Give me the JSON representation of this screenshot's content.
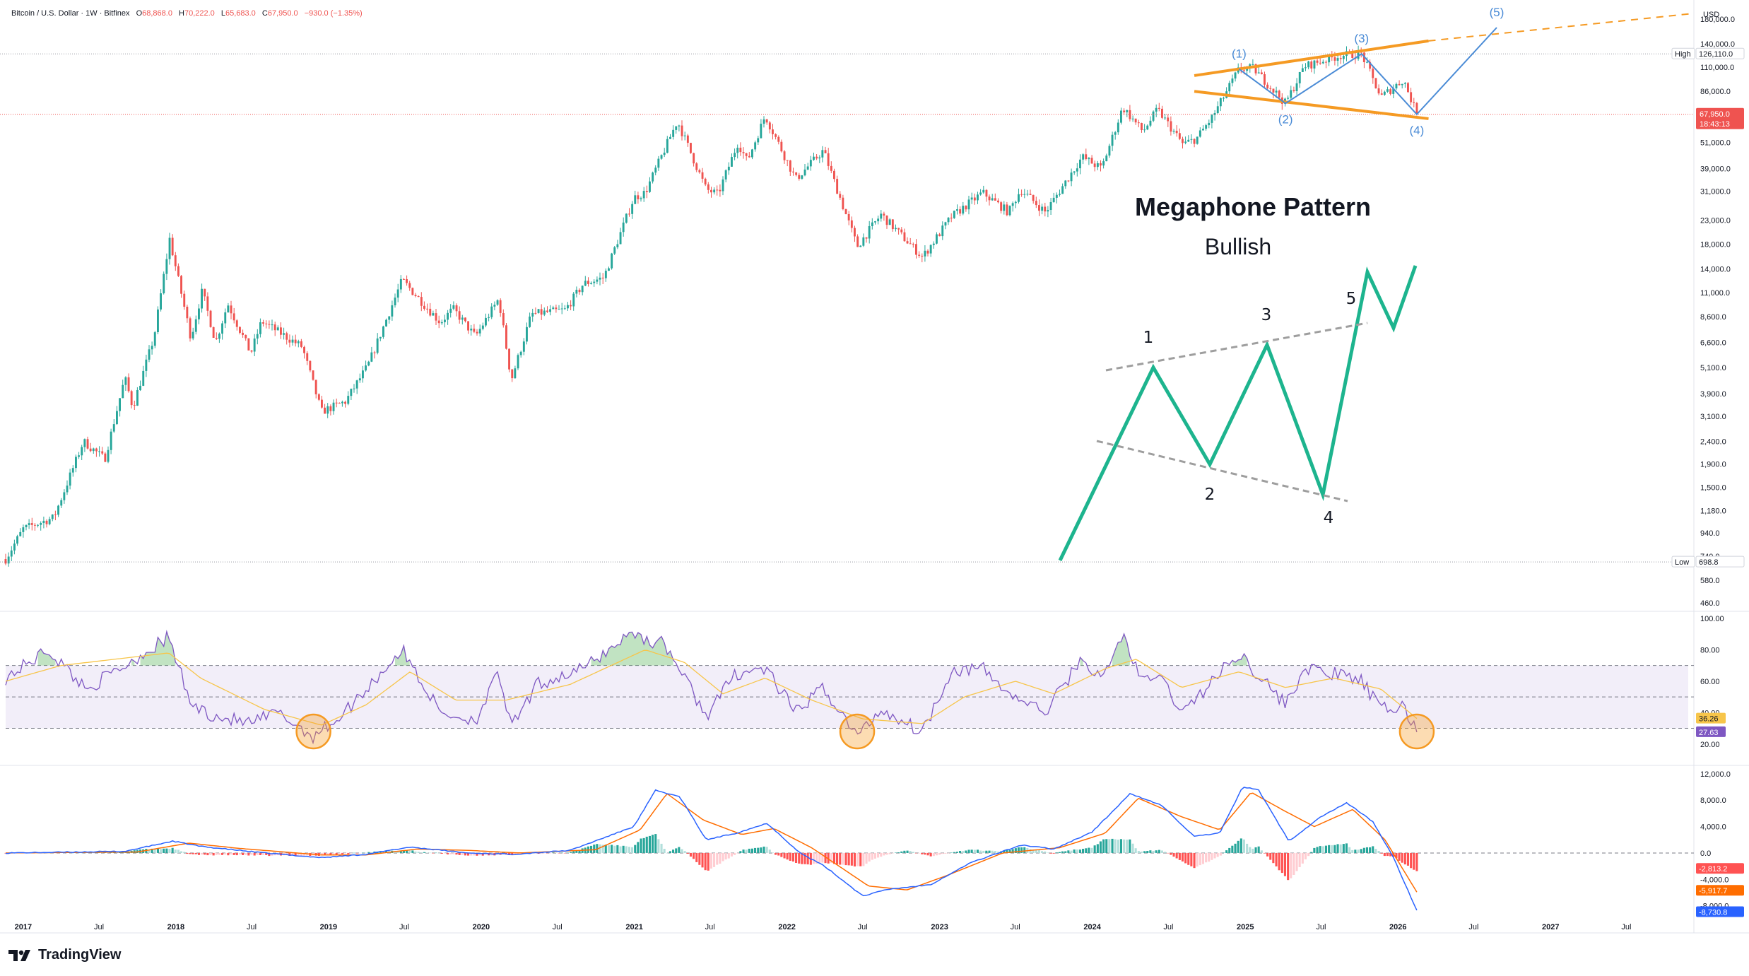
{
  "header": {
    "symbol": "Bitcoin / U.S. Dollar · 1W · Bitfinex",
    "open_label": "O",
    "open": "68,868.0",
    "high_label": "H",
    "high": "70,222.0",
    "low_label": "L",
    "low": "65,683.0",
    "close_label": "C",
    "close": "67,950.0",
    "change": "−930.0 (−1.35%)"
  },
  "branding": {
    "logo_text": "TradingView"
  },
  "colors": {
    "up": "#26a69a",
    "down": "#ef5350",
    "wave": "#4a8bd6",
    "megaphone": "#f59a23",
    "schematic": "#1db48e",
    "rsi": "#7e57c2",
    "rsi_ma": "#f7c54a",
    "macd": "#2962ff",
    "signal": "#ff6d00"
  },
  "chart_data": [
    {
      "type": "candlestick",
      "name": "price",
      "scale": "log",
      "currency": "USD",
      "ylim": [
        430,
        200000
      ],
      "xlim": [
        "2016-11-20",
        "2027-12-01"
      ],
      "price_ticks": [
        "180,000.0",
        "140,000.0",
        "110,000.0",
        "86,000.0",
        "51,000.0",
        "39,000.0",
        "31,000.0",
        "23,000.0",
        "18,000.0",
        "14,000.0",
        "11,000.0",
        "8,600.0",
        "6,600.0",
        "5,100.0",
        "3,900.0",
        "3,100.0",
        "2,400.0",
        "1,900.0",
        "1,500.0",
        "1,180.0",
        "940.0",
        "740.0",
        "580.0",
        "460.0"
      ],
      "high_marker": {
        "label": "High",
        "value": "126,110.0"
      },
      "low_marker": {
        "label": "Low",
        "value": "698.8"
      },
      "last_price": {
        "value": "67,950.0",
        "countdown": "18:43:13"
      },
      "price_path": [
        [
          "2016-11-20",
          720
        ],
        [
          "2017-01-01",
          980
        ],
        [
          "2017-03-15",
          1100
        ],
        [
          "2017-05-25",
          2400
        ],
        [
          "2017-07-15",
          2000
        ],
        [
          "2017-09-01",
          4600
        ],
        [
          "2017-09-20",
          3400
        ],
        [
          "2017-11-10",
          7000
        ],
        [
          "2017-12-17",
          19000
        ],
        [
          "2018-02-06",
          6900
        ],
        [
          "2018-03-05",
          11200
        ],
        [
          "2018-04-06",
          6600
        ],
        [
          "2018-05-05",
          9800
        ],
        [
          "2018-06-29",
          5900
        ],
        [
          "2018-07-25",
          8200
        ],
        [
          "2018-10-30",
          6300
        ],
        [
          "2018-12-15",
          3250
        ],
        [
          "2019-02-10",
          3600
        ],
        [
          "2019-04-05",
          5200
        ],
        [
          "2019-06-26",
          12500
        ],
        [
          "2019-09-25",
          8100
        ],
        [
          "2019-10-26",
          9300
        ],
        [
          "2019-12-18",
          7000
        ],
        [
          "2020-02-12",
          10300
        ],
        [
          "2020-03-13",
          4500
        ],
        [
          "2020-04-30",
          8800
        ],
        [
          "2020-07-20",
          9200
        ],
        [
          "2020-09-01",
          12000
        ],
        [
          "2020-10-20",
          12800
        ],
        [
          "2020-12-31",
          29000
        ],
        [
          "2021-01-27",
          30500
        ],
        [
          "2021-04-14",
          63500
        ],
        [
          "2021-06-22",
          31500
        ],
        [
          "2021-07-20",
          30000
        ],
        [
          "2021-09-06",
          51000
        ],
        [
          "2021-09-28",
          42000
        ],
        [
          "2021-11-10",
          67000
        ],
        [
          "2022-01-22",
          35000
        ],
        [
          "2022-03-29",
          47000
        ],
        [
          "2022-06-18",
          17600
        ],
        [
          "2022-08-14",
          24400
        ],
        [
          "2022-11-21",
          15800
        ],
        [
          "2023-01-29",
          23800
        ],
        [
          "2023-04-14",
          30500
        ],
        [
          "2023-06-15",
          25000
        ],
        [
          "2023-07-14",
          31500
        ],
        [
          "2023-09-11",
          25000
        ],
        [
          "2023-12-08",
          44000
        ],
        [
          "2024-01-23",
          39000
        ],
        [
          "2024-03-14",
          73000
        ],
        [
          "2024-05-01",
          57000
        ],
        [
          "2024-06-05",
          71500
        ],
        [
          "2024-08-05",
          50000
        ],
        [
          "2024-09-06",
          53000
        ],
        [
          "2024-10-14",
          66000
        ],
        [
          "2024-12-17",
          108000
        ],
        [
          "2025-01-20",
          109000
        ],
        [
          "2025-04-07",
          76000
        ],
        [
          "2025-05-22",
          111000
        ],
        [
          "2025-08-14",
          124000
        ],
        [
          "2025-10-06",
          126110
        ],
        [
          "2025-11-21",
          81000
        ],
        [
          "2026-01-14",
          97000
        ],
        [
          "2026-02-15",
          67950
        ]
      ],
      "elliott_waves": [
        {
          "label": "(1)",
          "date": "2024-12-17",
          "price": 108000,
          "side": "above"
        },
        {
          "label": "(2)",
          "date": "2025-04-07",
          "price": 76000,
          "side": "below"
        },
        {
          "label": "(3)",
          "date": "2025-10-06",
          "price": 126110,
          "side": "above"
        },
        {
          "label": "(4)",
          "date": "2026-02-15",
          "price": 67950,
          "side": "below"
        },
        {
          "label": "(5)",
          "date": "2026-08-25",
          "price": 165000,
          "side": "above"
        }
      ],
      "megaphone_upper": [
        [
          "2024-09-01",
          101000
        ],
        [
          "2026-03-15",
          144000
        ]
      ],
      "megaphone_upper_ext": [
        [
          "2026-03-15",
          144000
        ],
        [
          "2027-12-01",
          190000
        ]
      ],
      "megaphone_lower": [
        [
          "2024-09-01",
          86000
        ],
        [
          "2026-03-15",
          65000
        ]
      ],
      "x_ticks": [
        [
          "2017-01-01",
          "2017"
        ],
        [
          "2017-07-01",
          "Jul"
        ],
        [
          "2018-01-01",
          "2018"
        ],
        [
          "2018-07-01",
          "Jul"
        ],
        [
          "2019-01-01",
          "2019"
        ],
        [
          "2019-07-01",
          "Jul"
        ],
        [
          "2020-01-01",
          "2020"
        ],
        [
          "2020-07-01",
          "Jul"
        ],
        [
          "2021-01-01",
          "2021"
        ],
        [
          "2021-07-01",
          "Jul"
        ],
        [
          "2022-01-01",
          "2022"
        ],
        [
          "2022-07-01",
          "Jul"
        ],
        [
          "2023-01-01",
          "2023"
        ],
        [
          "2023-07-01",
          "Jul"
        ],
        [
          "2024-01-01",
          "2024"
        ],
        [
          "2024-07-01",
          "Jul"
        ],
        [
          "2025-01-01",
          "2025"
        ],
        [
          "2025-07-01",
          "Jul"
        ],
        [
          "2026-01-01",
          "2026"
        ],
        [
          "2026-07-01",
          "Jul"
        ],
        [
          "2027-01-01",
          "2027"
        ],
        [
          "2027-07-01",
          "Jul"
        ]
      ]
    },
    {
      "type": "diagram",
      "name": "megaphone schematic",
      "title": "Megaphone Pattern",
      "subtitle": "Bullish",
      "wave_labels": [
        "1",
        "2",
        "3",
        "4",
        "5"
      ]
    },
    {
      "type": "line",
      "name": "RSI",
      "ylim": [
        10,
        100
      ],
      "ticks": [
        "100.00",
        "80.00",
        "60.00",
        "40.00",
        "20.00"
      ],
      "band": [
        30,
        70
      ],
      "midline": 50,
      "rsi_value": "27.63",
      "rsi_ma_value": "36.26",
      "rsi_path": [
        [
          "2016-11-20",
          62
        ],
        [
          "2017-03-01",
          80
        ],
        [
          "2017-06-01",
          55
        ],
        [
          "2017-09-01",
          70
        ],
        [
          "2017-12-15",
          88
        ],
        [
          "2018-02-06",
          45
        ],
        [
          "2018-04-01",
          38
        ],
        [
          "2018-06-28",
          33
        ],
        [
          "2018-09-01",
          40
        ],
        [
          "2018-11-26",
          25
        ],
        [
          "2019-02-01",
          38
        ],
        [
          "2019-06-26",
          80
        ],
        [
          "2019-09-25",
          40
        ],
        [
          "2019-12-18",
          35
        ],
        [
          "2020-02-12",
          65
        ],
        [
          "2020-03-13",
          30
        ],
        [
          "2020-05-15",
          58
        ],
        [
          "2020-09-01",
          68
        ],
        [
          "2020-12-31",
          92
        ],
        [
          "2021-01-27",
          86
        ],
        [
          "2021-03-15",
          84
        ],
        [
          "2021-06-22",
          38
        ],
        [
          "2021-09-01",
          65
        ],
        [
          "2021-11-10",
          68
        ],
        [
          "2022-01-22",
          40
        ],
        [
          "2022-03-29",
          56
        ],
        [
          "2022-06-18",
          25
        ],
        [
          "2022-08-14",
          42
        ],
        [
          "2022-11-21",
          28
        ],
        [
          "2023-01-29",
          67
        ],
        [
          "2023-04-14",
          68
        ],
        [
          "2023-06-15",
          52
        ],
        [
          "2023-09-11",
          40
        ],
        [
          "2023-12-08",
          75
        ],
        [
          "2024-01-23",
          60
        ],
        [
          "2024-03-14",
          90
        ],
        [
          "2024-05-01",
          58
        ],
        [
          "2024-06-05",
          65
        ],
        [
          "2024-08-05",
          40
        ],
        [
          "2024-10-14",
          60
        ],
        [
          "2024-12-17",
          78
        ],
        [
          "2025-04-07",
          45
        ],
        [
          "2025-05-22",
          68
        ],
        [
          "2025-08-14",
          64
        ],
        [
          "2025-10-06",
          60
        ],
        [
          "2025-11-21",
          42
        ],
        [
          "2026-01-14",
          44
        ],
        [
          "2026-02-15",
          27.6
        ]
      ],
      "rsi_ma_path": [
        [
          "2016-11-20",
          60
        ],
        [
          "2017-04-01",
          70
        ],
        [
          "2017-12-15",
          78
        ],
        [
          "2018-03-01",
          62
        ],
        [
          "2018-08-01",
          42
        ],
        [
          "2018-12-15",
          32
        ],
        [
          "2019-04-01",
          45
        ],
        [
          "2019-07-15",
          66
        ],
        [
          "2019-11-01",
          48
        ],
        [
          "2020-03-01",
          48
        ],
        [
          "2020-08-01",
          58
        ],
        [
          "2021-01-27",
          80
        ],
        [
          "2021-05-01",
          72
        ],
        [
          "2021-08-01",
          52
        ],
        [
          "2021-11-10",
          62
        ],
        [
          "2022-03-01",
          48
        ],
        [
          "2022-07-01",
          36
        ],
        [
          "2022-11-21",
          33
        ],
        [
          "2023-03-01",
          50
        ],
        [
          "2023-07-01",
          60
        ],
        [
          "2023-10-01",
          52
        ],
        [
          "2024-02-01",
          68
        ],
        [
          "2024-04-15",
          74
        ],
        [
          "2024-08-01",
          56
        ],
        [
          "2024-12-17",
          66
        ],
        [
          "2025-04-07",
          56
        ],
        [
          "2025-08-01",
          62
        ],
        [
          "2025-11-21",
          55
        ],
        [
          "2026-02-15",
          36.3
        ]
      ],
      "oversold_circles": [
        "2018-11-26",
        "2022-06-18",
        "2026-02-15"
      ]
    },
    {
      "type": "histogram",
      "name": "MACD",
      "ylim": [
        -10500,
        12200
      ],
      "ticks": [
        "12,000.0",
        "8,000.0",
        "4,000.0",
        "0.0",
        "-4,000.0",
        "-8,000.0"
      ],
      "histogram_value": "-2,813.2",
      "signal_value": "-5,917.7",
      "macd_value": "-8,730.8",
      "macd_path": [
        [
          "2016-11-20",
          0
        ],
        [
          "2017-09-01",
          250
        ],
        [
          "2017-12-25",
          1800
        ],
        [
          "2018-03-01",
          1000
        ],
        [
          "2018-08-01",
          0
        ],
        [
          "2018-12-15",
          -700
        ],
        [
          "2019-04-01",
          -200
        ],
        [
          "2019-07-15",
          900
        ],
        [
          "2019-12-01",
          0
        ],
        [
          "2020-03-15",
          -200
        ],
        [
          "2020-08-01",
          400
        ],
        [
          "2020-12-31",
          4000
        ],
        [
          "2021-02-21",
          9500
        ],
        [
          "2021-04-20",
          8500
        ],
        [
          "2021-06-22",
          2000
        ],
        [
          "2021-09-01",
          3000
        ],
        [
          "2021-11-15",
          4500
        ],
        [
          "2022-02-01",
          0
        ],
        [
          "2022-04-01",
          -2000
        ],
        [
          "2022-07-01",
          -6500
        ],
        [
          "2022-09-01",
          -5500
        ],
        [
          "2022-12-10",
          -4800
        ],
        [
          "2023-03-15",
          -1500
        ],
        [
          "2023-07-15",
          1200
        ],
        [
          "2023-10-01",
          600
        ],
        [
          "2024-01-01",
          3200
        ],
        [
          "2024-04-01",
          9000
        ],
        [
          "2024-06-15",
          7200
        ],
        [
          "2024-09-01",
          2500
        ],
        [
          "2024-11-01",
          3000
        ],
        [
          "2024-12-25",
          10000
        ],
        [
          "2025-02-01",
          9600
        ],
        [
          "2025-04-15",
          1800
        ],
        [
          "2025-07-01",
          5500
        ],
        [
          "2025-09-01",
          7600
        ],
        [
          "2025-11-01",
          4800
        ],
        [
          "2025-12-20",
          -500
        ],
        [
          "2026-02-15",
          -8730.8
        ]
      ],
      "signal_path": [
        [
          "2016-11-20",
          0
        ],
        [
          "2017-10-01",
          150
        ],
        [
          "2018-02-01",
          1500
        ],
        [
          "2018-06-01",
          700
        ],
        [
          "2018-12-15",
          -300
        ],
        [
          "2019-04-01",
          -300
        ],
        [
          "2019-08-01",
          600
        ],
        [
          "2019-12-01",
          400
        ],
        [
          "2020-04-01",
          0
        ],
        [
          "2020-10-01",
          500
        ],
        [
          "2021-01-15",
          3500
        ],
        [
          "2021-03-20",
          9000
        ],
        [
          "2021-06-15",
          5000
        ],
        [
          "2021-09-15",
          2800
        ],
        [
          "2021-12-01",
          3700
        ],
        [
          "2022-03-01",
          800
        ],
        [
          "2022-07-15",
          -5000
        ],
        [
          "2022-10-15",
          -5600
        ],
        [
          "2023-01-15",
          -3500
        ],
        [
          "2023-06-01",
          0
        ],
        [
          "2023-10-15",
          800
        ],
        [
          "2024-02-01",
          3000
        ],
        [
          "2024-04-20",
          8300
        ],
        [
          "2024-08-01",
          5500
        ],
        [
          "2024-11-01",
          3500
        ],
        [
          "2025-01-15",
          9200
        ],
        [
          "2025-04-01",
          6500
        ],
        [
          "2025-06-15",
          4000
        ],
        [
          "2025-09-15",
          6600
        ],
        [
          "2025-12-01",
          2000
        ],
        [
          "2026-02-15",
          -5917.7
        ]
      ]
    }
  ]
}
